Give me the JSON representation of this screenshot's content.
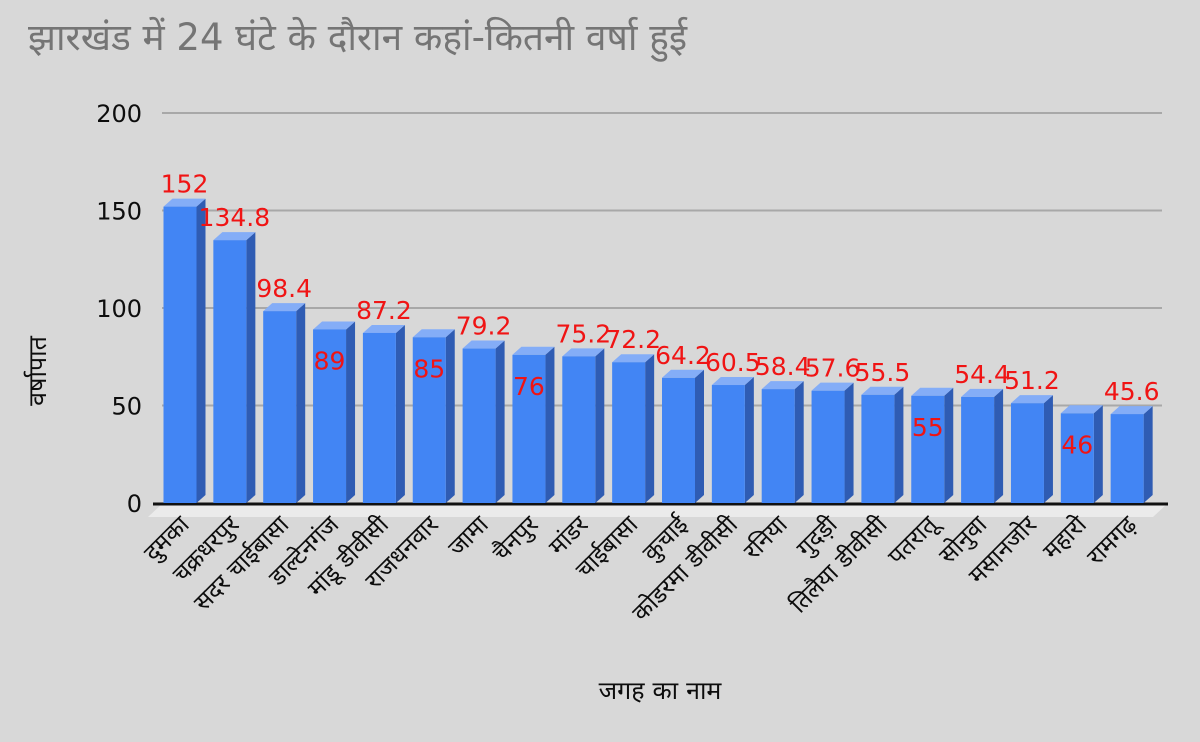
{
  "chart_data": {
    "type": "bar",
    "style": "3d-column",
    "title": "झारखंड में 24 घंटे के दौरान कहां-कितनी वर्षा हुई",
    "xlabel": "जगह का नाम",
    "ylabel": "वर्षापात",
    "ylim": [
      0,
      200
    ],
    "yticks": [
      0,
      50,
      100,
      150,
      200
    ],
    "grid": true,
    "legend_position": "none",
    "categories": [
      "दुमका",
      "चक्रधरपुर",
      "सदर चाईबासा",
      "डाल्टेनगंज",
      "मांडू डीवीसी",
      "राजधनवार",
      "जामा",
      "चैनपुर",
      "मांडर",
      "चाईबासा",
      "कुचाई",
      "कोडरमा डीवीसी",
      "रनिया",
      "गुदड़ी",
      "तिलैया डीवीसी",
      "पतरातू",
      "सोनुवा",
      "मसानजोर",
      "महारो",
      "रामगढ़"
    ],
    "values": [
      152,
      134.8,
      98.4,
      89,
      87.2,
      85,
      79.2,
      76,
      75.2,
      72.2,
      64.2,
      60.5,
      58.4,
      57.6,
      55.5,
      55,
      54.4,
      51.2,
      46,
      45.6
    ],
    "value_labels": [
      "152",
      "134.8",
      "98.4",
      "89",
      "87.2",
      "85",
      "79.2",
      "76",
      "75.2",
      "72.2",
      "64.2",
      "60.5",
      "58.4",
      "57.6",
      "55.5",
      "55",
      "54.4",
      "51.2",
      "46",
      "45.6"
    ],
    "inside_label_indices": [
      3,
      5,
      7,
      15,
      18
    ],
    "colors": {
      "background": "#d8d8d8",
      "title": "#757575",
      "bar_front": "#4285f4",
      "bar_top": "#84adf7",
      "bar_side": "#2f5cb3",
      "value_label": "#f01414",
      "grid": "#a8a8a8",
      "baseline": "#111111",
      "floor": "#ebebeb",
      "axis_text": "#0d0d0d"
    }
  }
}
